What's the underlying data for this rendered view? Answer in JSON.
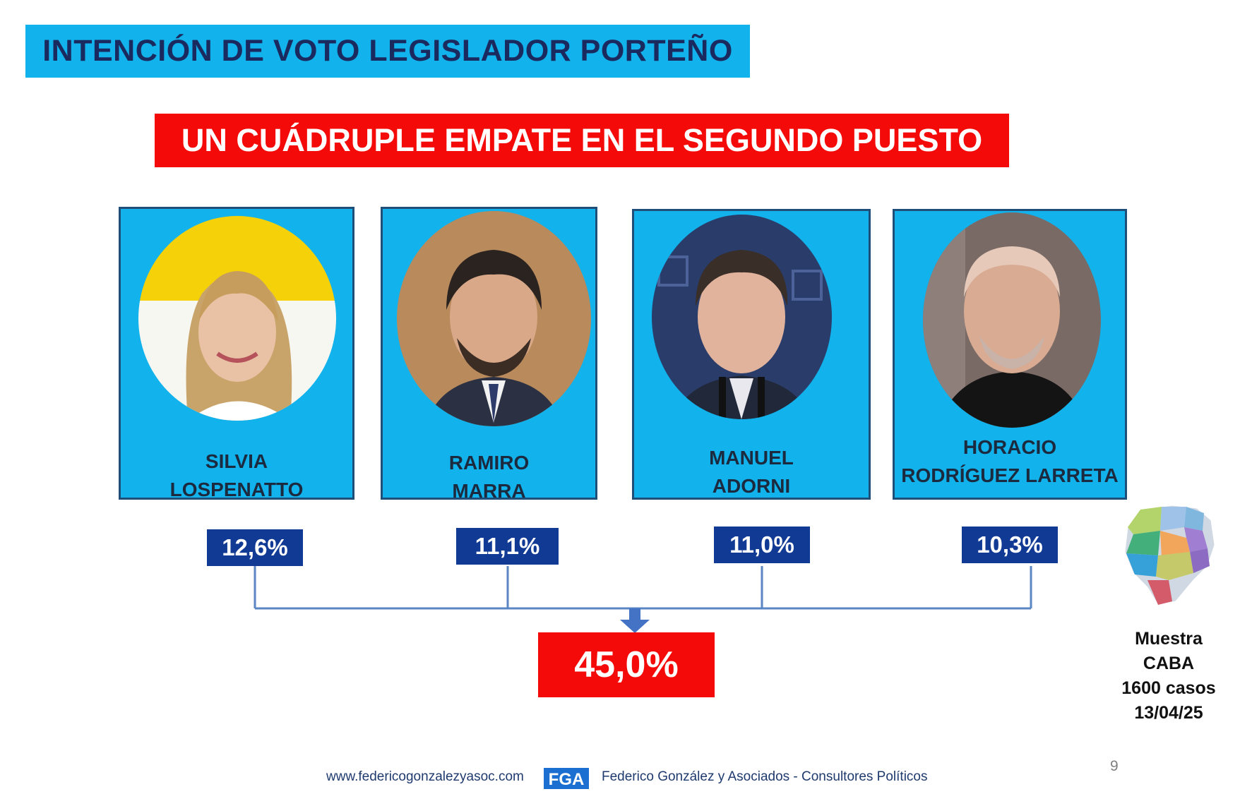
{
  "header": {
    "title": "INTENCIÓN DE VOTO LEGISLADOR PORTEÑO",
    "subtitle": "UN CUÁDRUPLE EMPATE EN EL SEGUNDO PUESTO"
  },
  "candidates": [
    {
      "name_line1": "SILVIA",
      "name_line2": "LOSPENATTO",
      "percent": "12,6%"
    },
    {
      "name_line1": "RAMIRO",
      "name_line2": "MARRA",
      "percent": "11,1%"
    },
    {
      "name_line1": "MANUEL",
      "name_line2": "ADORNI",
      "percent": "11,0%"
    },
    {
      "name_line1": "HORACIO",
      "name_line2": "RODRÍGUEZ LARRETA",
      "percent": "10,3%"
    }
  ],
  "total": "45,0%",
  "sample": {
    "line1": "Muestra",
    "line2": "CABA",
    "line3": "1600 casos",
    "line4": "13/04/25"
  },
  "page_number": "9",
  "footer": {
    "url": "www.federicogonzalezyasoc.com",
    "logo_text": "FGA",
    "firm": "Federico González y Asociados - Consultores Políticos"
  },
  "colors": {
    "title_bg": "#12b2ec",
    "subtitle_bg": "#f50a0a",
    "card_bg": "#12b2ec",
    "percent_bg": "#103a94",
    "total_bg": "#f50a0a"
  }
}
